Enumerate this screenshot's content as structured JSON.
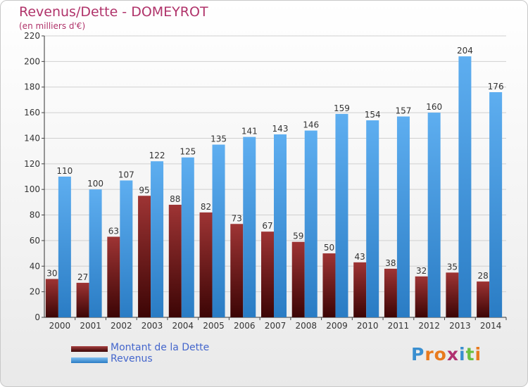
{
  "page": {
    "title": "Revenus/Dette - DOMEYROT",
    "subtitle": "(en milliers d'€)"
  },
  "logo": {
    "letters": [
      "P",
      "r",
      "o",
      "x",
      "i",
      "t",
      "i"
    ],
    "colors": [
      "#3a8fd0",
      "#e87a1e",
      "#e87a1e",
      "#b03070",
      "#3a8fd0",
      "#6abf40",
      "#e87a1e"
    ]
  },
  "chart_data": {
    "type": "bar",
    "categories": [
      "2000",
      "2001",
      "2002",
      "2003",
      "2004",
      "2005",
      "2006",
      "2007",
      "2008",
      "2009",
      "2010",
      "2011",
      "2012",
      "2013",
      "2014"
    ],
    "series": [
      {
        "name": "Montant de la Dette",
        "color": "#7a1a1a",
        "values": [
          30,
          27,
          63,
          95,
          88,
          82,
          73,
          67,
          59,
          50,
          43,
          38,
          32,
          35,
          28
        ]
      },
      {
        "name": "Revenus",
        "color": "#3a8fd6",
        "values": [
          110,
          100,
          107,
          122,
          125,
          135,
          141,
          143,
          146,
          159,
          154,
          157,
          160,
          204,
          176
        ]
      }
    ],
    "ylim": [
      0,
      220
    ],
    "yticks": [
      0,
      20,
      40,
      60,
      80,
      100,
      120,
      140,
      160,
      180,
      200,
      220
    ],
    "grid": true,
    "legend_position": "bottom-left"
  }
}
